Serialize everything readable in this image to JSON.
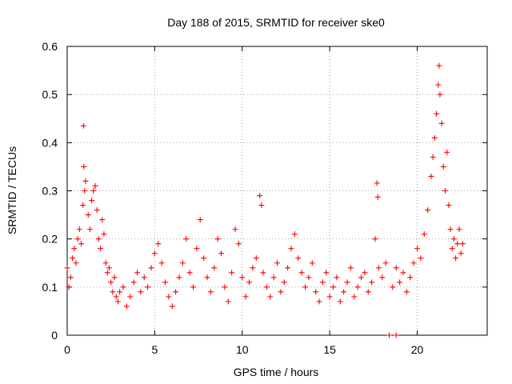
{
  "chart_data": {
    "type": "scatter",
    "title": "Day 188 of 2015, SRMTID for receiver ske0",
    "xlabel": "GPS time / hours",
    "ylabel": "SRMTID / TECUs",
    "xlim": [
      0,
      24
    ],
    "ylim": [
      0,
      0.6
    ],
    "xticks": [
      0,
      5,
      10,
      15,
      20
    ],
    "yticks": [
      0,
      0.1,
      0.2,
      0.3,
      0.4,
      0.5,
      0.6
    ],
    "xtick_labels": [
      "0",
      "5",
      "10",
      "15",
      "20"
    ],
    "ytick_labels": [
      "0",
      "0.1",
      "0.2",
      "0.3",
      "0.4",
      "0.5",
      "0.6"
    ],
    "grid": true,
    "marker": "+",
    "color": "#ff0000",
    "series": [
      {
        "name": "SRMTID",
        "points": [
          [
            0.0,
            0.14
          ],
          [
            0.1,
            0.1
          ],
          [
            0.2,
            0.12
          ],
          [
            0.3,
            0.16
          ],
          [
            0.4,
            0.18
          ],
          [
            0.5,
            0.15
          ],
          [
            0.6,
            0.2
          ],
          [
            0.7,
            0.22
          ],
          [
            0.8,
            0.19
          ],
          [
            0.9,
            0.27
          ],
          [
            0.95,
            0.35
          ],
          [
            1.0,
            0.3
          ],
          [
            0.93,
            0.435
          ],
          [
            1.05,
            0.32
          ],
          [
            1.2,
            0.25
          ],
          [
            1.3,
            0.22
          ],
          [
            1.4,
            0.28
          ],
          [
            1.5,
            0.3
          ],
          [
            1.6,
            0.31
          ],
          [
            1.7,
            0.26
          ],
          [
            1.8,
            0.2
          ],
          [
            1.9,
            0.18
          ],
          [
            2.0,
            0.24
          ],
          [
            2.1,
            0.21
          ],
          [
            2.2,
            0.15
          ],
          [
            2.3,
            0.13
          ],
          [
            2.4,
            0.14
          ],
          [
            2.5,
            0.11
          ],
          [
            2.6,
            0.09
          ],
          [
            2.7,
            0.12
          ],
          [
            2.8,
            0.08
          ],
          [
            2.9,
            0.07
          ],
          [
            3.0,
            0.09
          ],
          [
            3.2,
            0.1
          ],
          [
            3.4,
            0.06
          ],
          [
            3.6,
            0.08
          ],
          [
            3.8,
            0.11
          ],
          [
            4.0,
            0.13
          ],
          [
            4.2,
            0.09
          ],
          [
            4.4,
            0.12
          ],
          [
            4.6,
            0.1
          ],
          [
            4.8,
            0.14
          ],
          [
            5.0,
            0.17
          ],
          [
            5.2,
            0.19
          ],
          [
            5.4,
            0.15
          ],
          [
            5.6,
            0.11
          ],
          [
            5.8,
            0.08
          ],
          [
            6.0,
            0.06
          ],
          [
            6.2,
            0.09
          ],
          [
            6.4,
            0.12
          ],
          [
            6.6,
            0.15
          ],
          [
            6.8,
            0.2
          ],
          [
            7.0,
            0.13
          ],
          [
            7.2,
            0.1
          ],
          [
            7.4,
            0.18
          ],
          [
            7.6,
            0.24
          ],
          [
            7.8,
            0.16
          ],
          [
            8.0,
            0.12
          ],
          [
            8.2,
            0.09
          ],
          [
            8.4,
            0.14
          ],
          [
            8.6,
            0.2
          ],
          [
            8.8,
            0.17
          ],
          [
            9.0,
            0.1
          ],
          [
            9.2,
            0.07
          ],
          [
            9.4,
            0.13
          ],
          [
            9.6,
            0.22
          ],
          [
            9.8,
            0.19
          ],
          [
            10.0,
            0.12
          ],
          [
            10.2,
            0.08
          ],
          [
            10.4,
            0.11
          ],
          [
            10.6,
            0.14
          ],
          [
            10.8,
            0.16
          ],
          [
            11.0,
            0.29
          ],
          [
            11.1,
            0.27
          ],
          [
            11.2,
            0.13
          ],
          [
            11.4,
            0.1
          ],
          [
            11.6,
            0.08
          ],
          [
            11.8,
            0.12
          ],
          [
            12.0,
            0.15
          ],
          [
            12.2,
            0.09
          ],
          [
            12.4,
            0.11
          ],
          [
            12.6,
            0.14
          ],
          [
            12.8,
            0.18
          ],
          [
            13.0,
            0.21
          ],
          [
            13.2,
            0.16
          ],
          [
            13.4,
            0.13
          ],
          [
            13.6,
            0.1
          ],
          [
            13.8,
            0.12
          ],
          [
            14.0,
            0.15
          ],
          [
            14.2,
            0.09
          ],
          [
            14.4,
            0.07
          ],
          [
            14.6,
            0.11
          ],
          [
            14.8,
            0.13
          ],
          [
            15.0,
            0.08
          ],
          [
            15.2,
            0.1
          ],
          [
            15.4,
            0.12
          ],
          [
            15.6,
            0.07
          ],
          [
            15.8,
            0.09
          ],
          [
            16.0,
            0.11
          ],
          [
            16.2,
            0.14
          ],
          [
            16.4,
            0.08
          ],
          [
            16.6,
            0.1
          ],
          [
            16.8,
            0.12
          ],
          [
            17.0,
            0.13
          ],
          [
            17.2,
            0.09
          ],
          [
            17.4,
            0.11
          ],
          [
            17.6,
            0.2
          ],
          [
            17.7,
            0.316
          ],
          [
            17.75,
            0.287
          ],
          [
            17.8,
            0.14
          ],
          [
            18.0,
            0.12
          ],
          [
            18.2,
            0.15
          ],
          [
            18.6,
            0.1
          ],
          [
            18.8,
            0.14
          ],
          [
            19.0,
            0.11
          ],
          [
            19.2,
            0.13
          ],
          [
            19.4,
            0.09
          ],
          [
            19.6,
            0.12
          ],
          [
            19.8,
            0.15
          ],
          [
            20.0,
            0.18
          ],
          [
            20.2,
            0.16
          ],
          [
            20.4,
            0.21
          ],
          [
            20.6,
            0.26
          ],
          [
            20.8,
            0.33
          ],
          [
            20.9,
            0.37
          ],
          [
            21.0,
            0.41
          ],
          [
            21.1,
            0.46
          ],
          [
            21.2,
            0.52
          ],
          [
            21.25,
            0.56
          ],
          [
            21.3,
            0.5
          ],
          [
            21.4,
            0.44
          ],
          [
            21.5,
            0.35
          ],
          [
            21.6,
            0.3
          ],
          [
            21.7,
            0.38
          ],
          [
            21.8,
            0.27
          ],
          [
            21.9,
            0.22
          ],
          [
            22.0,
            0.18
          ],
          [
            22.1,
            0.2
          ],
          [
            22.2,
            0.16
          ],
          [
            22.3,
            0.19
          ],
          [
            22.4,
            0.22
          ],
          [
            22.5,
            0.17
          ],
          [
            22.6,
            0.19
          ],
          [
            18.4,
            0.0
          ],
          [
            18.8,
            0.0
          ]
        ]
      }
    ]
  }
}
